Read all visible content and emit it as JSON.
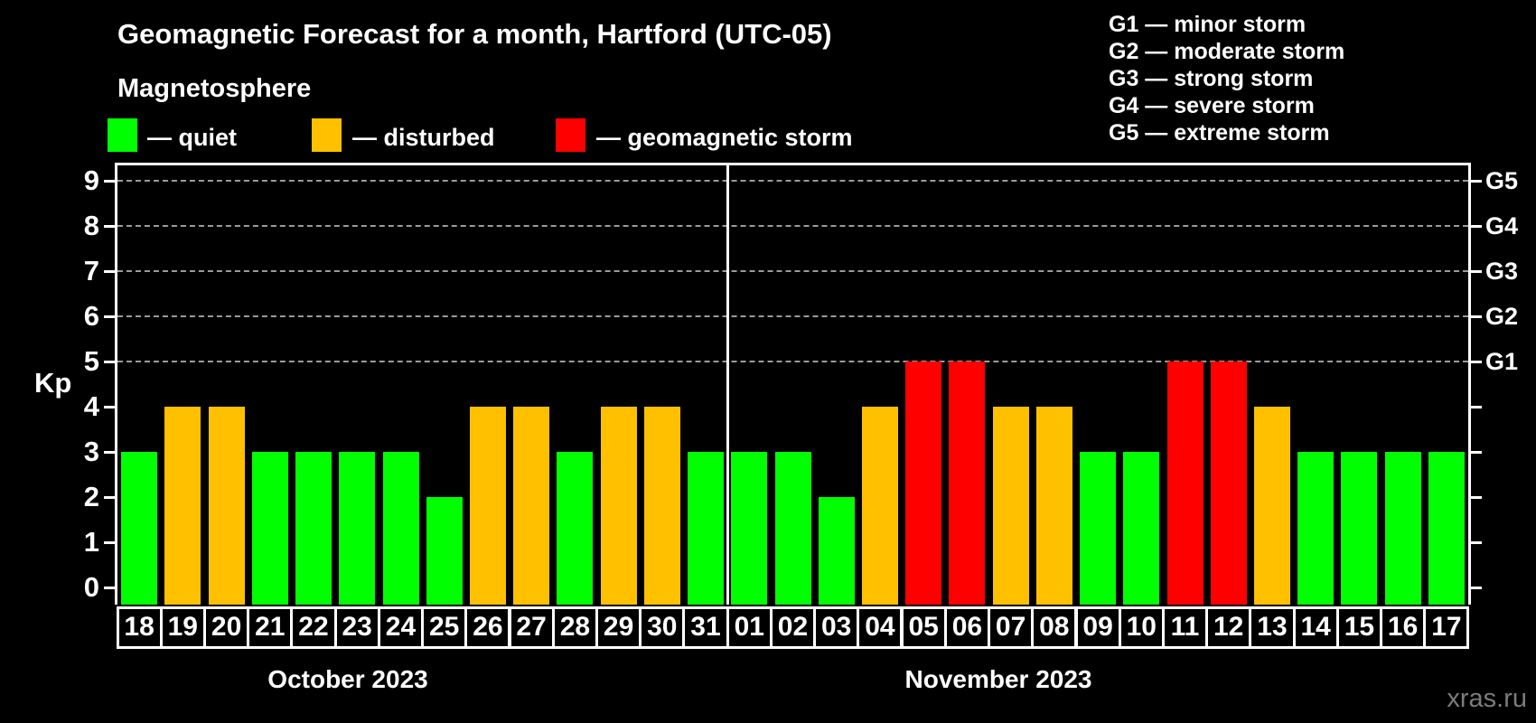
{
  "title": "Geomagnetic Forecast for a month, Hartford (UTC-05)",
  "subtitle": "Magnetosphere",
  "legend": {
    "items": [
      {
        "name": "quiet",
        "label": "— quiet",
        "color": "#00ff00"
      },
      {
        "name": "disturbed",
        "label": "— disturbed",
        "color": "#ffc000"
      },
      {
        "name": "storm",
        "label": "— geomagnetic storm",
        "color": "#ff0000"
      }
    ]
  },
  "storm_scale": {
    "lines": [
      "G1 — minor storm",
      "G2 — moderate storm",
      "G3 — strong storm",
      "G4 — severe storm",
      "G5 — extreme storm"
    ]
  },
  "watermark": "xras.ru",
  "chart_data": {
    "type": "bar",
    "ylabel": "Kp",
    "ylim": [
      0,
      9
    ],
    "y_ticks": [
      0,
      1,
      2,
      3,
      4,
      5,
      6,
      7,
      8,
      9
    ],
    "gridlines_at_kp": [
      5,
      6,
      7,
      8,
      9
    ],
    "grid_style": "dashed",
    "legend_position": "top",
    "right_axis_labels": [
      {
        "text": "G1",
        "kp": 5
      },
      {
        "text": "G2",
        "kp": 6
      },
      {
        "text": "G3",
        "kp": 7
      },
      {
        "text": "G4",
        "kp": 8
      },
      {
        "text": "G5",
        "kp": 9
      }
    ],
    "status_colors": {
      "quiet": "#00ff00",
      "disturbed": "#ffc000",
      "storm": "#ff0000"
    },
    "months": [
      {
        "label": "October 2023",
        "days": 14
      },
      {
        "label": "November 2023",
        "days": 17
      }
    ],
    "bars": [
      {
        "day": "18",
        "kp": 3,
        "status": "quiet"
      },
      {
        "day": "19",
        "kp": 4,
        "status": "disturbed"
      },
      {
        "day": "20",
        "kp": 4,
        "status": "disturbed"
      },
      {
        "day": "21",
        "kp": 3,
        "status": "quiet"
      },
      {
        "day": "22",
        "kp": 3,
        "status": "quiet"
      },
      {
        "day": "23",
        "kp": 3,
        "status": "quiet"
      },
      {
        "day": "24",
        "kp": 3,
        "status": "quiet"
      },
      {
        "day": "25",
        "kp": 2,
        "status": "quiet"
      },
      {
        "day": "26",
        "kp": 4,
        "status": "disturbed"
      },
      {
        "day": "27",
        "kp": 4,
        "status": "disturbed"
      },
      {
        "day": "28",
        "kp": 3,
        "status": "quiet"
      },
      {
        "day": "29",
        "kp": 4,
        "status": "disturbed"
      },
      {
        "day": "30",
        "kp": 4,
        "status": "disturbed"
      },
      {
        "day": "31",
        "kp": 3,
        "status": "quiet"
      },
      {
        "day": "01",
        "kp": 3,
        "status": "quiet"
      },
      {
        "day": "02",
        "kp": 3,
        "status": "quiet"
      },
      {
        "day": "03",
        "kp": 2,
        "status": "quiet"
      },
      {
        "day": "04",
        "kp": 4,
        "status": "disturbed"
      },
      {
        "day": "05",
        "kp": 5,
        "status": "storm"
      },
      {
        "day": "06",
        "kp": 5,
        "status": "storm"
      },
      {
        "day": "07",
        "kp": 4,
        "status": "disturbed"
      },
      {
        "day": "08",
        "kp": 4,
        "status": "disturbed"
      },
      {
        "day": "09",
        "kp": 3,
        "status": "quiet"
      },
      {
        "day": "10",
        "kp": 3,
        "status": "quiet"
      },
      {
        "day": "11",
        "kp": 5,
        "status": "storm"
      },
      {
        "day": "12",
        "kp": 5,
        "status": "storm"
      },
      {
        "day": "13",
        "kp": 4,
        "status": "disturbed"
      },
      {
        "day": "14",
        "kp": 3,
        "status": "quiet"
      },
      {
        "day": "15",
        "kp": 3,
        "status": "quiet"
      },
      {
        "day": "16",
        "kp": 3,
        "status": "quiet"
      },
      {
        "day": "17",
        "kp": 3,
        "status": "quiet"
      }
    ]
  }
}
